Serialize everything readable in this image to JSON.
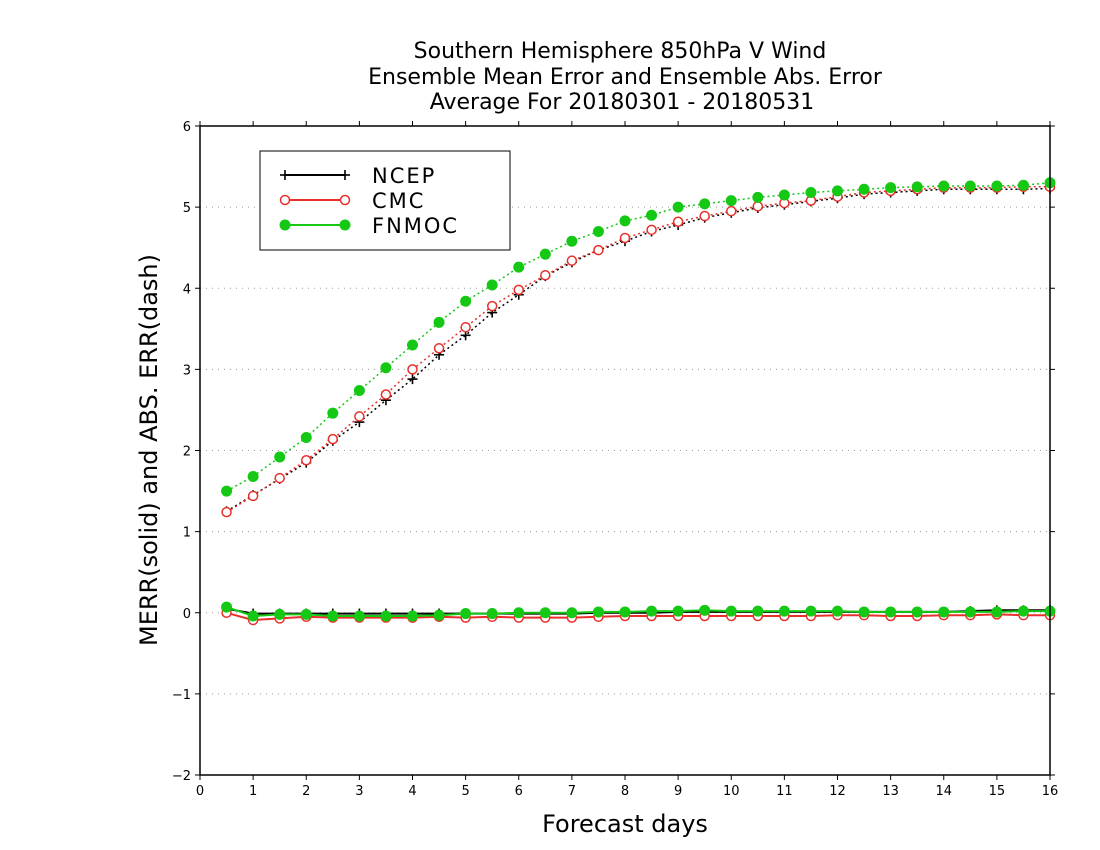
{
  "chart_data": {
    "type": "line",
    "title_lines": [
      "Southern Hemisphere 850hPa V Wind",
      "Ensemble Mean Error and Ensemble Abs. Error",
      "Average For 20180301 - 20180531"
    ],
    "xlabel": "Forecast days",
    "ylabel": "MERR(solid) and ABS. ERR(dash)",
    "xlim": [
      0,
      16
    ],
    "ylim": [
      -2,
      6
    ],
    "x_ticks": [
      "0",
      "1",
      "2",
      "3",
      "4",
      "5",
      "6",
      "7",
      "8",
      "9",
      "10",
      "11",
      "12",
      "13",
      "14",
      "15",
      "16"
    ],
    "y_ticks": [
      "-2",
      "-1",
      "0",
      "1",
      "2",
      "3",
      "4",
      "5",
      "6"
    ],
    "grid": "horizontal dotted",
    "legend_position": "top-left",
    "x": [
      0.5,
      1,
      1.5,
      2,
      2.5,
      3,
      3.5,
      4,
      4.5,
      5,
      5.5,
      6,
      6.5,
      7,
      7.5,
      8,
      8.5,
      9,
      9.5,
      10,
      10.5,
      11,
      11.5,
      12,
      12.5,
      13,
      13.5,
      14,
      14.5,
      15,
      15.5,
      16
    ],
    "series": [
      {
        "name": "NCEP",
        "color": "#000000",
        "marker": "plus",
        "merr": [
          0.05,
          -0.01,
          -0.01,
          -0.01,
          -0.01,
          -0.01,
          -0.01,
          -0.01,
          -0.01,
          -0.01,
          -0.01,
          -0.01,
          -0.01,
          -0.01,
          0.0,
          0.0,
          0.0,
          0.01,
          0.01,
          0.01,
          0.01,
          0.01,
          0.01,
          0.01,
          0.01,
          0.01,
          0.01,
          0.01,
          0.02,
          0.03,
          0.03,
          0.03
        ],
        "abs_err": [
          1.25,
          1.45,
          1.65,
          1.85,
          2.12,
          2.35,
          2.62,
          2.88,
          3.18,
          3.42,
          3.7,
          3.92,
          4.15,
          4.32,
          4.47,
          4.58,
          4.7,
          4.78,
          4.87,
          4.93,
          4.99,
          5.03,
          5.07,
          5.11,
          5.16,
          5.18,
          5.2,
          5.22,
          5.22,
          5.22,
          5.22,
          5.23
        ]
      },
      {
        "name": "CMC",
        "color": "#e8302a",
        "marker": "open-circle",
        "merr": [
          0.0,
          -0.09,
          -0.07,
          -0.05,
          -0.06,
          -0.06,
          -0.06,
          -0.06,
          -0.05,
          -0.06,
          -0.05,
          -0.06,
          -0.06,
          -0.06,
          -0.05,
          -0.04,
          -0.04,
          -0.04,
          -0.04,
          -0.04,
          -0.04,
          -0.04,
          -0.04,
          -0.03,
          -0.03,
          -0.04,
          -0.04,
          -0.03,
          -0.03,
          -0.02,
          -0.03,
          -0.03
        ],
        "abs_err": [
          1.24,
          1.44,
          1.66,
          1.88,
          2.14,
          2.42,
          2.69,
          3.0,
          3.26,
          3.52,
          3.78,
          3.98,
          4.16,
          4.34,
          4.47,
          4.62,
          4.72,
          4.82,
          4.89,
          4.95,
          5.01,
          5.05,
          5.08,
          5.13,
          5.18,
          5.2,
          5.22,
          5.24,
          5.24,
          5.24,
          5.25,
          5.25
        ]
      },
      {
        "name": "FNMOC",
        "color": "#14c814",
        "marker": "filled-circle",
        "merr": [
          0.07,
          -0.04,
          -0.02,
          -0.02,
          -0.04,
          -0.04,
          -0.04,
          -0.04,
          -0.03,
          -0.01,
          -0.01,
          0.0,
          0.0,
          0.0,
          0.01,
          0.01,
          0.02,
          0.02,
          0.03,
          0.02,
          0.02,
          0.02,
          0.02,
          0.02,
          0.01,
          0.01,
          0.01,
          0.01,
          0.01,
          0.01,
          0.02,
          0.02
        ],
        "abs_err": [
          1.5,
          1.68,
          1.92,
          2.16,
          2.46,
          2.74,
          3.02,
          3.3,
          3.58,
          3.84,
          4.04,
          4.26,
          4.42,
          4.58,
          4.7,
          4.83,
          4.9,
          5.0,
          5.04,
          5.08,
          5.12,
          5.15,
          5.18,
          5.2,
          5.22,
          5.24,
          5.25,
          5.26,
          5.26,
          5.26,
          5.27,
          5.3
        ]
      }
    ]
  }
}
